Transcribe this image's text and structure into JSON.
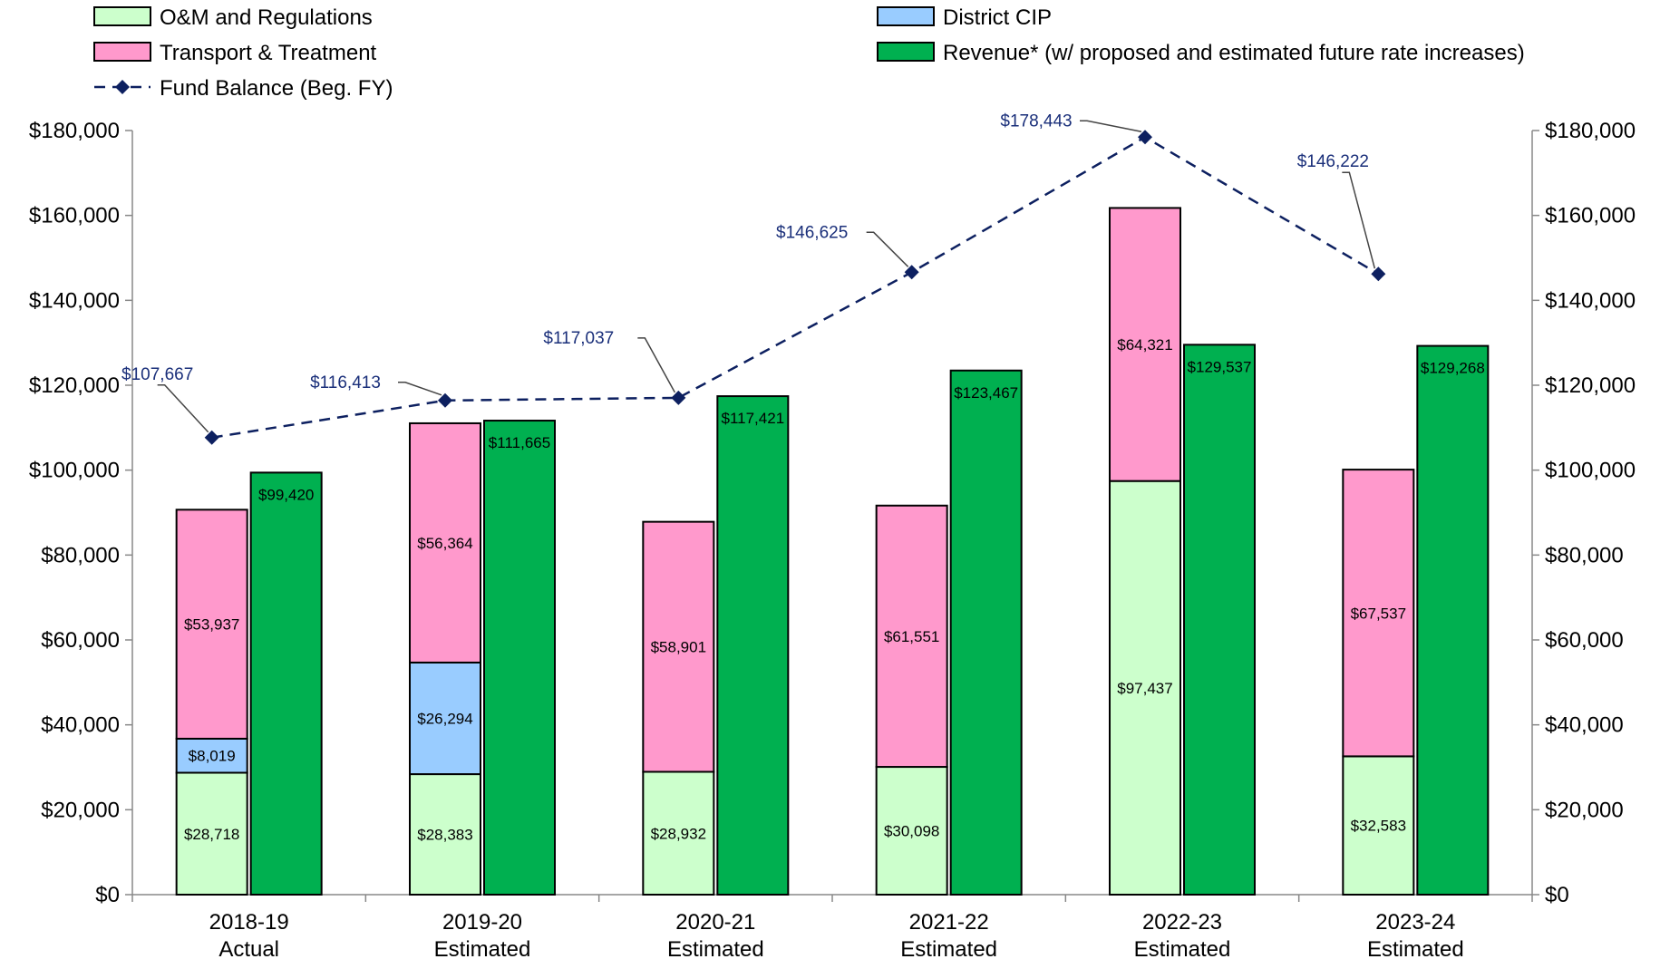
{
  "chart_data": {
    "type": "bar",
    "stacked": true,
    "categories": [
      "2018-19",
      "2019-20",
      "2020-21",
      "2021-22",
      "2022-23",
      "2023-24"
    ],
    "category_sublabels": [
      "Actual",
      "Estimated",
      "Estimated",
      "Estimated",
      "Estimated",
      "Estimated"
    ],
    "ylim": [
      0,
      180000
    ],
    "yticks": [
      "$0",
      "$20,000",
      "$40,000",
      "$60,000",
      "$80,000",
      "$100,000",
      "$120,000",
      "$140,000",
      "$160,000",
      "$180,000"
    ],
    "ytick_values": [
      0,
      20000,
      40000,
      60000,
      80000,
      100000,
      120000,
      140000,
      160000,
      180000
    ],
    "grid": false,
    "legend": "top",
    "expense_series": [
      {
        "name": "O&M and Regulations",
        "color": "#ccffcc",
        "values": [
          28718,
          28383,
          28932,
          30098,
          97437,
          32583
        ],
        "labels": [
          "$28,718",
          "$28,383",
          "$28,932",
          "$30,098",
          "$97,437",
          "$32,583"
        ]
      },
      {
        "name": "District CIP",
        "color": "#99ccff",
        "values": [
          8019,
          26294,
          0,
          0,
          0,
          0
        ],
        "labels": [
          "$8,019",
          "$26,294",
          "",
          "",
          "",
          ""
        ]
      },
      {
        "name": "Transport & Treatment",
        "color": "#ff99cc",
        "values": [
          53937,
          56364,
          58901,
          61551,
          64321,
          67537
        ],
        "labels": [
          "$53,937",
          "$56,364",
          "$58,901",
          "$61,551",
          "$64,321",
          "$67,537"
        ]
      }
    ],
    "revenue_series": {
      "name": "Revenue* (w/ proposed and estimated future rate increases)",
      "color": "#00b050",
      "values": [
        99420,
        111665,
        117421,
        123467,
        129537,
        129268
      ],
      "labels": [
        "$99,420",
        "$111,665",
        "$117,421",
        "$123,467",
        "$129,537",
        "$129,268"
      ]
    },
    "line_series": {
      "name": "Fund Balance (Beg. FY)",
      "color": "#0d2060",
      "values": [
        107667,
        116413,
        117037,
        146625,
        178443,
        146222
      ],
      "labels": [
        "$107,667",
        "$116,413",
        "$117,037",
        "$146,625",
        "$178,443",
        "$146,222"
      ]
    }
  }
}
